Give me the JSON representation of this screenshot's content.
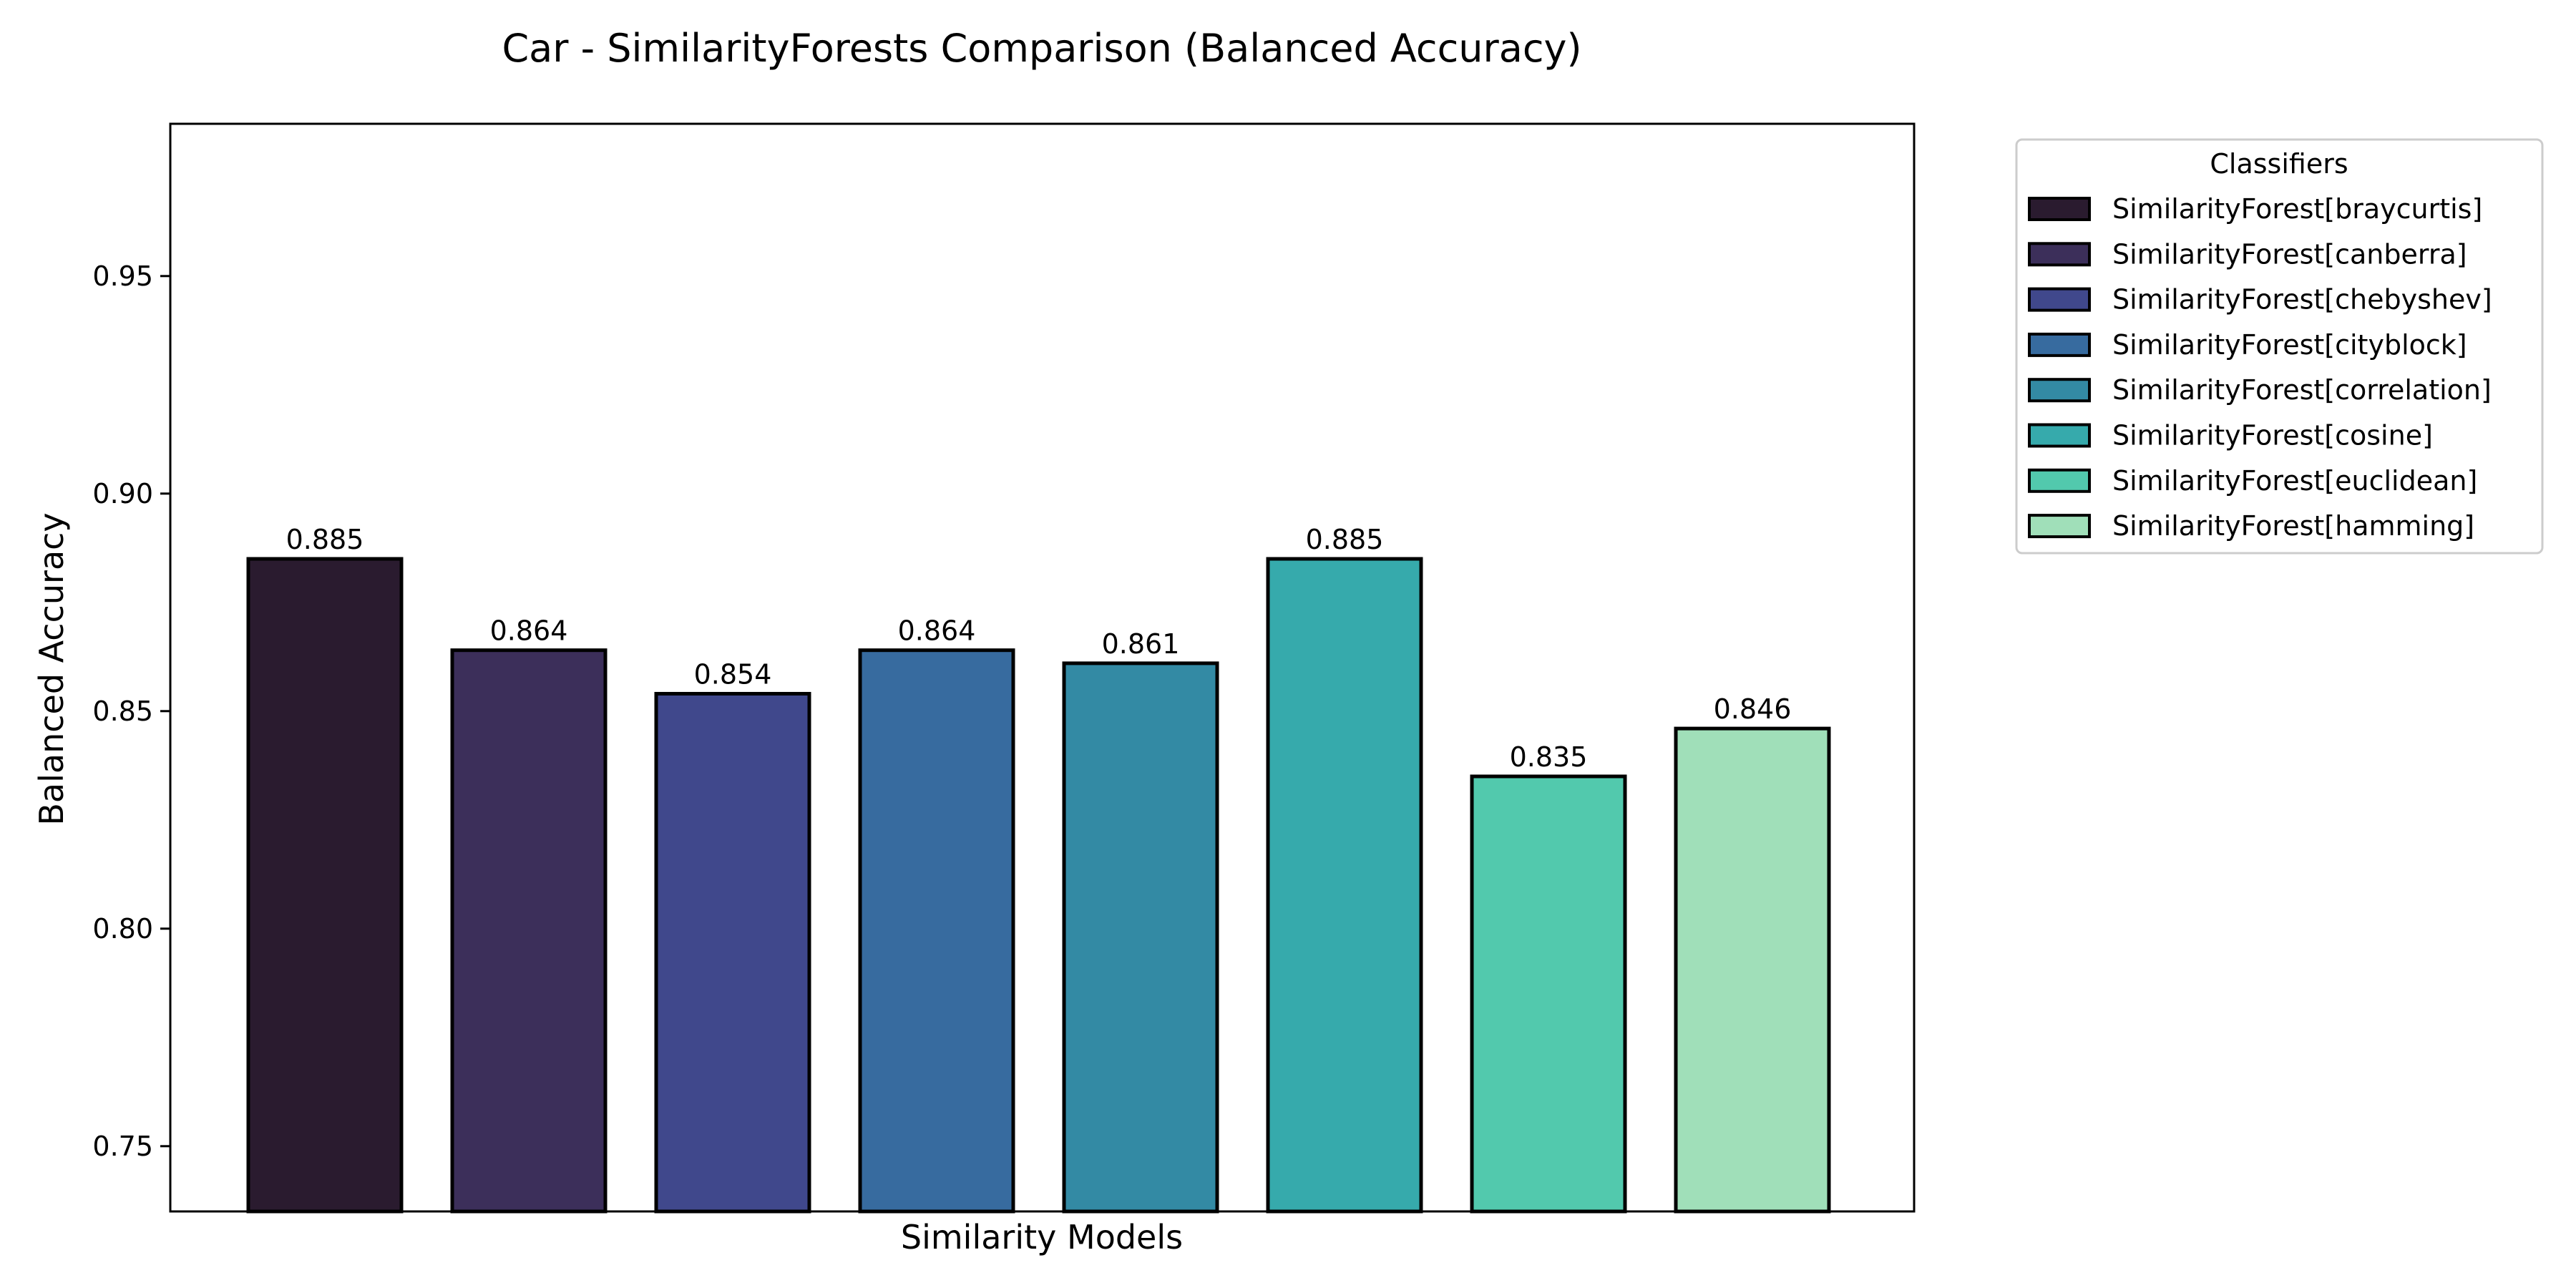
{
  "chart_data": {
    "type": "bar",
    "title": "Car - SimilarityForests Comparison (Balanced Accuracy)",
    "xlabel": "Similarity Models",
    "ylabel": "Balanced Accuracy",
    "ylim": [
      0.735,
      0.985
    ],
    "yticks": [
      0.75,
      0.8,
      0.85,
      0.9,
      0.95
    ],
    "ytick_labels": [
      "0.75",
      "0.80",
      "0.85",
      "0.90",
      "0.95"
    ],
    "grid": false,
    "legend": {
      "title": "Classifiers",
      "placement": "outside-right"
    },
    "series": [
      {
        "name": "SimilarityForest[braycurtis]",
        "value": 0.885,
        "label": "0.885",
        "color": "#2a1b2f"
      },
      {
        "name": "SimilarityForest[canberra]",
        "value": 0.864,
        "label": "0.864",
        "color": "#3c2f5a"
      },
      {
        "name": "SimilarityForest[chebyshev]",
        "value": 0.854,
        "label": "0.854",
        "color": "#40488c"
      },
      {
        "name": "SimilarityForest[cityblock]",
        "value": 0.864,
        "label": "0.864",
        "color": "#376b9f"
      },
      {
        "name": "SimilarityForest[correlation]",
        "value": 0.861,
        "label": "0.861",
        "color": "#338aa4"
      },
      {
        "name": "SimilarityForest[cosine]",
        "value": 0.885,
        "label": "0.885",
        "color": "#36aaac"
      },
      {
        "name": "SimilarityForest[euclidean]",
        "value": 0.835,
        "label": "0.835",
        "color": "#52c9ad"
      },
      {
        "name": "SimilarityForest[hamming]",
        "value": 0.846,
        "label": "0.846",
        "color": "#a0dfb9"
      }
    ]
  }
}
